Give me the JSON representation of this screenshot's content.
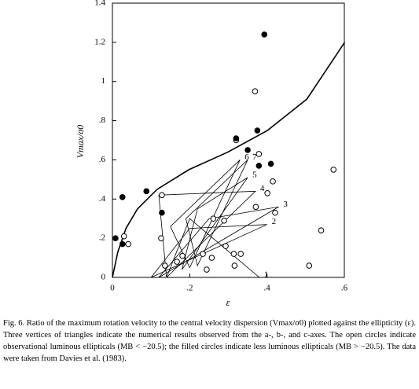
{
  "chart_data": {
    "type": "scatter",
    "xlabel": "ε",
    "ylabel": "Vmax/σ0",
    "xlim": [
      0,
      0.6
    ],
    "ylim": [
      0,
      1.4
    ],
    "xticks": [
      0,
      {
        "value": 0.2,
        "label": ".2"
      },
      {
        "value": 0.4,
        "label": ".4"
      },
      {
        "value": 0.6,
        "label": ".6"
      }
    ],
    "yticks": [
      0,
      {
        "value": 0.2,
        "label": ".2"
      },
      {
        "value": 0.4,
        "label": ".4"
      },
      {
        "value": 0.6,
        "label": ".6"
      },
      {
        "value": 0.8,
        "label": ".8"
      },
      1,
      1.2,
      1.4
    ],
    "color": "#000000",
    "filled": {
      "x": [
        0.393,
        0.32,
        0.375,
        0.35,
        0.41,
        0.379,
        0.088,
        0.026,
        0.128,
        0.008,
        0.026
      ],
      "y": [
        1.24,
        0.71,
        0.75,
        0.65,
        0.58,
        0.57,
        0.44,
        0.41,
        0.33,
        0.2,
        0.17
      ]
    },
    "open": {
      "x": [
        0.369,
        0.32,
        0.379,
        0.572,
        0.415,
        0.401,
        0.128,
        0.371,
        0.421,
        0.261,
        0.289,
        0.54,
        0.03,
        0.041,
        0.126,
        0.181,
        0.167,
        0.136,
        0.234,
        0.257,
        0.244,
        0.314,
        0.332,
        0.316,
        0.509,
        0.293
      ],
      "y": [
        0.95,
        0.7,
        0.63,
        0.55,
        0.49,
        0.43,
        0.42,
        0.36,
        0.33,
        0.3,
        0.29,
        0.24,
        0.21,
        0.17,
        0.2,
        0.11,
        0.08,
        0.06,
        0.12,
        0.1,
        0.04,
        0.12,
        0.12,
        0.06,
        0.06,
        0.16
      ]
    },
    "curve": {
      "x": [
        0,
        0.014,
        0.035,
        0.065,
        0.116,
        0.198,
        0.299,
        0.401,
        0.503,
        0.601
      ],
      "y": [
        0,
        0.13,
        0.25,
        0.35,
        0.45,
        0.55,
        0.64,
        0.75,
        0.91,
        1.2
      ]
    },
    "triangles": [
      {
        "label": "1",
        "x": [
          0.14,
          0.38,
          0.2
        ],
        "y": [
          0,
          0,
          0.3
        ]
      },
      {
        "label": "2",
        "x": [
          0.1,
          0.4,
          0.2
        ],
        "y": [
          0,
          0.27,
          0.25
        ]
      },
      {
        "label": "3",
        "x": [
          0.12,
          0.43,
          0.25
        ],
        "y": [
          0,
          0.36,
          0.3
        ]
      },
      {
        "label": "4",
        "x": [
          0.14,
          0.37,
          0.12
        ],
        "y": [
          0,
          0.44,
          0.42
        ]
      },
      {
        "label": "5",
        "x": [
          0.18,
          0.35,
          0.22
        ],
        "y": [
          0.04,
          0.51,
          0.35
        ]
      },
      {
        "label": "6",
        "x": [
          0.2,
          0.33,
          0.15
        ],
        "y": [
          0.05,
          0.6,
          0.26
        ]
      },
      {
        "label": "7",
        "x": [
          0.22,
          0.35,
          0.19
        ],
        "y": [
          0.06,
          0.6,
          0.3
        ]
      }
    ]
  },
  "caption": "Fig. 6.   Ratio of the maximum rotation velocity to the central velocity dispersion (Vmax/σ0) plotted against the ellipticity (ε). Three vertices of triangles indicate the numerical results observed from the a-, b-, and c-axes. The open circles indicate observational luminous ellipticals (MB < −20.5); the filled circles indicate less luminous ellipticals (MB > −20.5). The data were taken from Davies et al. (1983)."
}
